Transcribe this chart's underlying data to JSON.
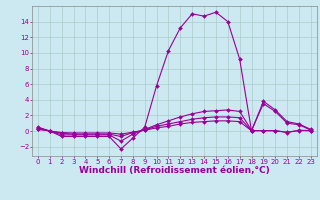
{
  "xlabel": "Windchill (Refroidissement éolien,°C)",
  "background_color": "#cce8f0",
  "line_color": "#990099",
  "grid_color": "#aacccc",
  "xlim": [
    -0.5,
    23.5
  ],
  "ylim": [
    -3.2,
    16.0
  ],
  "xticks": [
    0,
    1,
    2,
    3,
    4,
    5,
    6,
    7,
    8,
    9,
    10,
    11,
    12,
    13,
    14,
    15,
    16,
    17,
    18,
    19,
    20,
    21,
    22,
    23
  ],
  "yticks": [
    -2,
    0,
    2,
    4,
    6,
    8,
    10,
    12,
    14
  ],
  "lines": [
    {
      "x": [
        0,
        1,
        2,
        3,
        4,
        5,
        6,
        7,
        8,
        9,
        10,
        11,
        12,
        13,
        14,
        15,
        16,
        17,
        18,
        19,
        20,
        21,
        22,
        23
      ],
      "y": [
        0.5,
        0.0,
        -0.7,
        -0.7,
        -0.7,
        -0.7,
        -0.7,
        -2.3,
        -0.9,
        0.5,
        5.8,
        10.3,
        13.2,
        15.0,
        14.7,
        15.2,
        14.0,
        9.2,
        0.0,
        3.8,
        2.7,
        1.2,
        0.9,
        0.2
      ]
    },
    {
      "x": [
        0,
        1,
        2,
        3,
        4,
        5,
        6,
        7,
        8,
        9,
        10,
        11,
        12,
        13,
        14,
        15,
        16,
        17,
        18,
        19,
        20,
        21,
        22,
        23
      ],
      "y": [
        0.4,
        0.0,
        -0.5,
        -0.5,
        -0.5,
        -0.5,
        -0.5,
        -1.3,
        -0.4,
        0.2,
        0.8,
        1.3,
        1.8,
        2.2,
        2.5,
        2.6,
        2.7,
        2.5,
        0.1,
        3.5,
        2.5,
        1.0,
        0.8,
        0.1
      ]
    },
    {
      "x": [
        0,
        1,
        2,
        3,
        4,
        5,
        6,
        7,
        8,
        9,
        10,
        11,
        12,
        13,
        14,
        15,
        16,
        17,
        18,
        19,
        20,
        21,
        22,
        23
      ],
      "y": [
        0.3,
        0.0,
        -0.3,
        -0.4,
        -0.4,
        -0.4,
        -0.4,
        -0.7,
        -0.2,
        0.15,
        0.6,
        0.9,
        1.2,
        1.5,
        1.7,
        1.8,
        1.8,
        1.7,
        0.05,
        0.05,
        0.05,
        -0.2,
        0.1,
        0.05
      ]
    },
    {
      "x": [
        0,
        1,
        2,
        3,
        4,
        5,
        6,
        7,
        8,
        9,
        10,
        11,
        12,
        13,
        14,
        15,
        16,
        17,
        18,
        19,
        20,
        21,
        22,
        23
      ],
      "y": [
        0.2,
        0.0,
        -0.2,
        -0.25,
        -0.25,
        -0.25,
        -0.25,
        -0.4,
        -0.15,
        0.1,
        0.4,
        0.6,
        0.9,
        1.1,
        1.2,
        1.3,
        1.3,
        1.2,
        0.03,
        0.03,
        0.03,
        -0.15,
        0.05,
        0.03
      ]
    }
  ],
  "marker": "D",
  "markersize": 2.0,
  "linewidth": 0.8,
  "tick_fontsize": 5.0,
  "label_fontsize": 6.5,
  "tick_color": "#990099",
  "label_color": "#990099"
}
